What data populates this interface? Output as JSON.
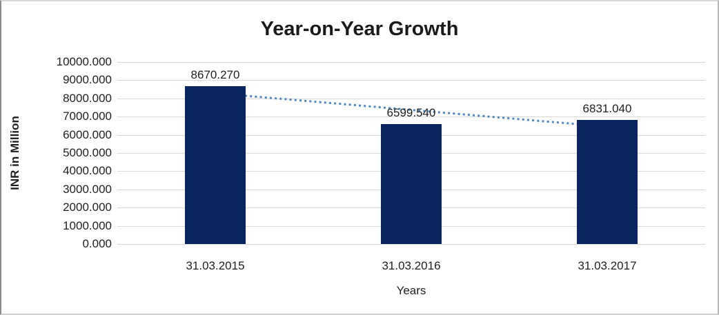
{
  "chart_data": {
    "type": "bar",
    "title": "Year-on-Year Growth",
    "categories": [
      "31.03.2015",
      "31.03.2016",
      "31.03.2017"
    ],
    "values": [
      8670.27,
      6599.54,
      6831.04
    ],
    "data_labels": [
      "8670.270",
      "6599.540",
      "6831.040"
    ],
    "xlabel": "Years",
    "ylabel": "INR in Million",
    "ylim": [
      0,
      10000
    ],
    "y_tick_step": 1000,
    "y_tick_labels": [
      "10000.000",
      "9000.000",
      "8000.000",
      "7000.000",
      "6000.000",
      "5000.000",
      "4000.000",
      "3000.000",
      "2000.000",
      "1000.000",
      "0.000"
    ],
    "grid": true,
    "legend": "none",
    "colors": {
      "bar": "#0B265E",
      "trendline": "#4F86C6",
      "gridline": "#d9d9d9",
      "text": "#1f1f1f"
    },
    "trendline": {
      "type": "linear",
      "style": "dotted"
    }
  }
}
